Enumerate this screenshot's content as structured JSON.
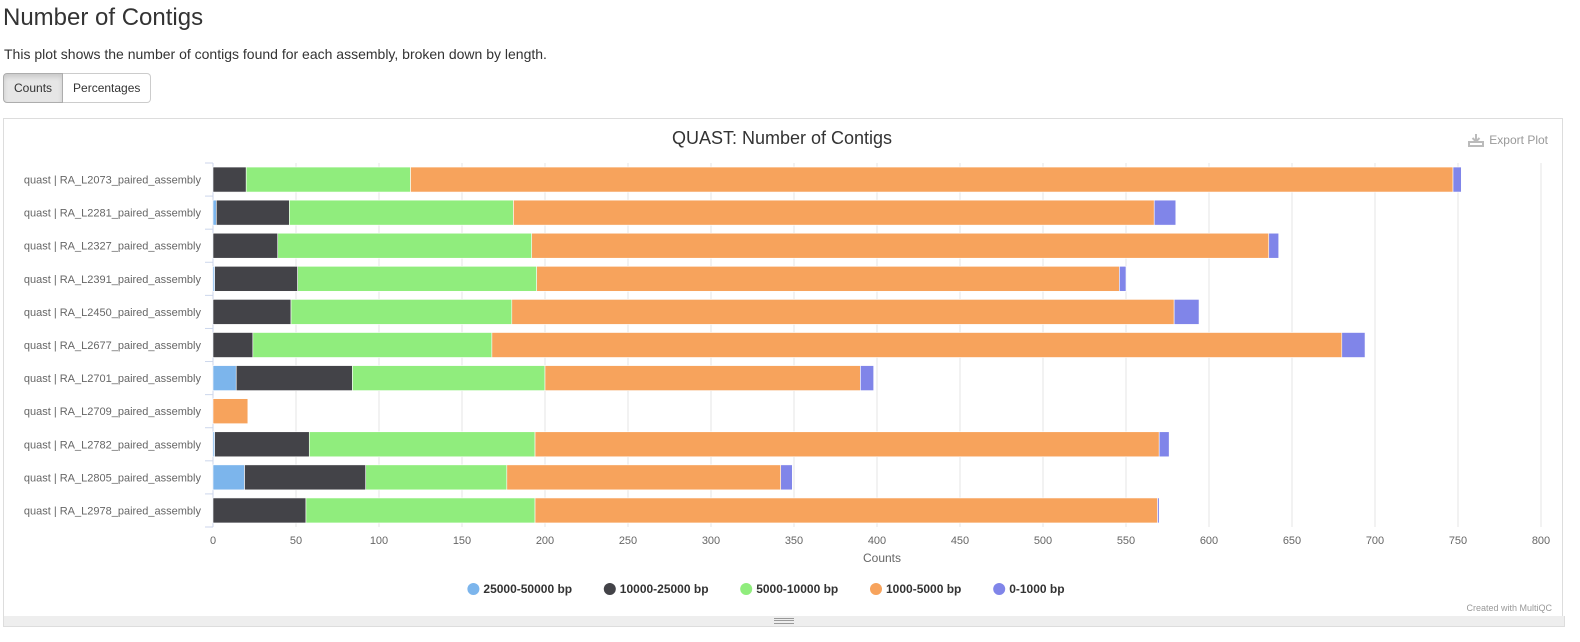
{
  "section": {
    "title": "Number of Contigs",
    "description": "This plot shows the number of contigs found for each assembly, broken down by length."
  },
  "toggle": {
    "counts_label": "Counts",
    "percentages_label": "Percentages",
    "active": "Counts"
  },
  "export_label": "Export Plot",
  "credit": "Created with MultiQC",
  "colors": {
    "s25000": "#7cb5ec",
    "s10000": "#434348",
    "s5000": "#90ed7d",
    "s1000": "#f7a35c",
    "s0": "#8085e9"
  },
  "chart_data": {
    "type": "bar",
    "orientation": "horizontal",
    "stacked": true,
    "title": "QUAST: Number of Contigs",
    "xlabel": "Counts",
    "ylabel": "",
    "xlim": [
      0,
      800
    ],
    "xticks": [
      0,
      50,
      100,
      150,
      200,
      250,
      300,
      350,
      400,
      450,
      500,
      550,
      600,
      650,
      700,
      750,
      800
    ],
    "grid": true,
    "legend_position": "bottom",
    "categories": [
      "quast | RA_L2073_paired_assembly",
      "quast | RA_L2281_paired_assembly",
      "quast | RA_L2327_paired_assembly",
      "quast | RA_L2391_paired_assembly",
      "quast | RA_L2450_paired_assembly",
      "quast | RA_L2677_paired_assembly",
      "quast | RA_L2701_paired_assembly",
      "quast | RA_L2709_paired_assembly",
      "quast | RA_L2782_paired_assembly",
      "quast | RA_L2805_paired_assembly",
      "quast | RA_L2978_paired_assembly"
    ],
    "series": [
      {
        "name": "25000-50000 bp",
        "color_key": "s25000",
        "values": [
          0,
          2,
          0,
          1,
          0,
          0,
          14,
          0,
          1,
          19,
          0
        ]
      },
      {
        "name": "10000-25000 bp",
        "color_key": "s10000",
        "values": [
          20,
          44,
          39,
          50,
          47,
          24,
          70,
          0,
          57,
          73,
          56
        ]
      },
      {
        "name": "5000-10000 bp",
        "color_key": "s5000",
        "values": [
          99,
          135,
          153,
          144,
          133,
          144,
          116,
          0,
          136,
          85,
          138
        ]
      },
      {
        "name": "1000-5000 bp",
        "color_key": "s1000",
        "values": [
          628,
          386,
          444,
          351,
          399,
          512,
          190,
          21,
          376,
          165,
          375
        ]
      },
      {
        "name": "0-1000 bp",
        "color_key": "s0",
        "values": [
          5,
          13,
          6,
          4,
          15,
          14,
          8,
          0,
          6,
          7,
          1
        ]
      }
    ]
  }
}
